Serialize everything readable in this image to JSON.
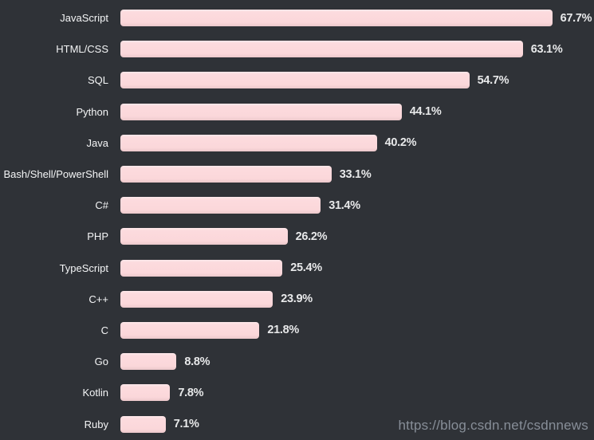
{
  "chart_data": {
    "type": "bar",
    "orientation": "horizontal",
    "title": "",
    "xlabel": "",
    "ylabel": "",
    "grid": false,
    "legend": null,
    "xlim": [
      0,
      74
    ],
    "categories": [
      "JavaScript",
      "HTML/CSS",
      "SQL",
      "Python",
      "Java",
      "Bash/Shell/PowerShell",
      "C#",
      "PHP",
      "TypeScript",
      "C++",
      "C",
      "Go",
      "Kotlin",
      "Ruby"
    ],
    "values": [
      67.7,
      63.1,
      54.7,
      44.1,
      40.2,
      33.1,
      31.4,
      26.2,
      25.4,
      23.9,
      21.8,
      8.8,
      7.8,
      7.1
    ],
    "value_labels": [
      "67.7%",
      "63.1%",
      "54.7%",
      "44.1%",
      "40.2%",
      "33.1%",
      "31.4%",
      "26.2%",
      "25.4%",
      "23.9%",
      "21.8%",
      "8.8%",
      "7.8%",
      "7.1%"
    ],
    "colors": {
      "background": "#2f3237",
      "bar_fill": "#fbd8db",
      "bar_highlight": "#fee9eb",
      "bar_shadow": "#ebc8cb",
      "category_label": "#f4f5f6",
      "value_label": "#e8e9ea"
    }
  },
  "watermark": {
    "text": "https://blog.csdn.net/csdnnews"
  }
}
